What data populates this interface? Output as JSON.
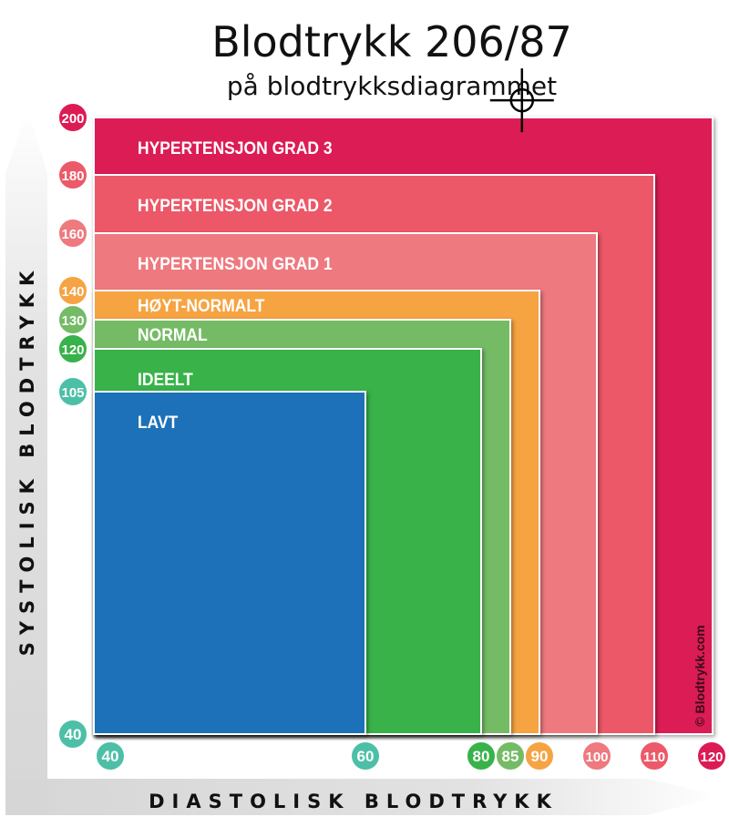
{
  "title": "Blodtrykk 206/87",
  "subtitle": "på blodtrykksdiagrammet",
  "watermark": "© Blodtrykk.com",
  "chart_data": {
    "type": "area",
    "xlabel": "DIASTOLISK BLODTRYKK",
    "ylabel": "SYSTOLISK BLODTRYKK",
    "xlim": [
      40,
      120
    ],
    "ylim": [
      40,
      200
    ],
    "zones": [
      {
        "name": "HYPERTENSJON GRAD 3",
        "x_max": 120,
        "y_max": 200,
        "color": "#dc1b55"
      },
      {
        "name": "HYPERTENSJON GRAD 2",
        "x_max": 110,
        "y_max": 180,
        "color": "#ec5968"
      },
      {
        "name": "HYPERTENSJON GRAD 1",
        "x_max": 100,
        "y_max": 160,
        "color": "#ee797f"
      },
      {
        "name": "HØYT-NORMALT",
        "x_max": 90,
        "y_max": 140,
        "color": "#f6a343"
      },
      {
        "name": "NORMAL",
        "x_max": 85,
        "y_max": 130,
        "color": "#74bb65"
      },
      {
        "name": "IDEELT",
        "x_max": 80,
        "y_max": 120,
        "color": "#38b24a"
      },
      {
        "name": "LAVT",
        "x_max": 60,
        "y_max": 105,
        "color": "#1c71b9"
      }
    ],
    "y_ticks": [
      {
        "value": 200,
        "label": "200",
        "color": "#dc1b55"
      },
      {
        "value": 180,
        "label": "180",
        "color": "#ec5968"
      },
      {
        "value": 160,
        "label": "160",
        "color": "#ee797f"
      },
      {
        "value": 140,
        "label": "140",
        "color": "#f6a343"
      },
      {
        "value": 130,
        "label": "130",
        "color": "#74bb65"
      },
      {
        "value": 120,
        "label": "120",
        "color": "#38b24a"
      },
      {
        "value": 105,
        "label": "105",
        "color": "#4dbfa6"
      },
      {
        "value": 40,
        "label": "40",
        "color": "#4dbfa6"
      }
    ],
    "x_ticks": [
      {
        "value": 40,
        "label": "40",
        "color": "#4dbfa6"
      },
      {
        "value": 60,
        "label": "60",
        "color": "#4dbfa6"
      },
      {
        "value": 80,
        "label": "80",
        "color": "#38b24a"
      },
      {
        "value": 85,
        "label": "85",
        "color": "#74bb65"
      },
      {
        "value": 90,
        "label": "90",
        "color": "#f6a343"
      },
      {
        "value": 100,
        "label": "100",
        "color": "#ee797f"
      },
      {
        "value": 110,
        "label": "110",
        "color": "#ec5968"
      },
      {
        "value": 120,
        "label": "120",
        "color": "#dc1b55"
      }
    ],
    "marker": {
      "x": 87,
      "y": 206
    }
  }
}
